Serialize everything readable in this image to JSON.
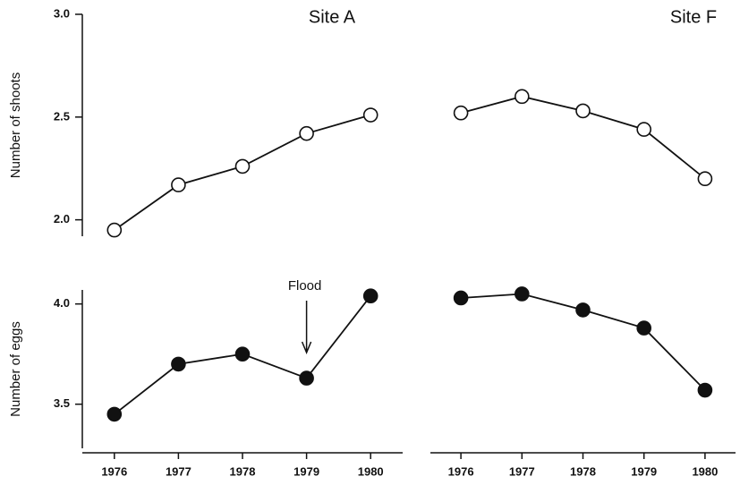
{
  "chart_data": [
    {
      "type": "line",
      "title": "Site A",
      "y_label": "Number of shoots",
      "marker": "open",
      "color": "#111111",
      "x": [
        1976,
        1977,
        1978,
        1979,
        1980
      ],
      "values": [
        1.95,
        2.17,
        2.26,
        2.42,
        2.51
      ],
      "xlim": [
        1975.5,
        1980.5
      ],
      "ylim": [
        1.92,
        3.0
      ],
      "yticks": [
        {
          "value": 2,
          "label": "2.0"
        },
        2.5,
        {
          "value": 3,
          "label": "3.0"
        }
      ]
    },
    {
      "type": "line",
      "title": "Site F",
      "marker": "open",
      "color": "#111111",
      "x": [
        1976,
        1977,
        1978,
        1979,
        1980
      ],
      "values": [
        2.52,
        2.6,
        2.53,
        2.44,
        2.2
      ],
      "xlim": [
        1975.5,
        1980.5
      ],
      "ylim": [
        1.92,
        3.0
      ]
    },
    {
      "type": "line",
      "y_label": "Number of eggs",
      "marker": "filled",
      "color": "#111111",
      "x": [
        1976,
        1977,
        1978,
        1979,
        1980
      ],
      "values": [
        3.45,
        3.7,
        3.75,
        3.63,
        4.04
      ],
      "xlim": [
        1975.5,
        1980.5
      ],
      "ylim": [
        3.28,
        4.07
      ],
      "yticks": [
        3.5,
        {
          "value": 4,
          "label": "4.0"
        }
      ],
      "xticks": [
        1976,
        1977,
        1978,
        1979,
        1980
      ],
      "annotation": {
        "text": "Flood",
        "x": 1979
      }
    },
    {
      "type": "line",
      "marker": "filled",
      "color": "#111111",
      "x": [
        1976,
        1977,
        1978,
        1979,
        1980
      ],
      "values": [
        4.03,
        4.05,
        3.97,
        3.88,
        3.57
      ],
      "xlim": [
        1975.5,
        1980.5
      ],
      "ylim": [
        3.28,
        4.07
      ],
      "xticks": [
        1976,
        1977,
        1978,
        1979,
        1980
      ]
    }
  ]
}
